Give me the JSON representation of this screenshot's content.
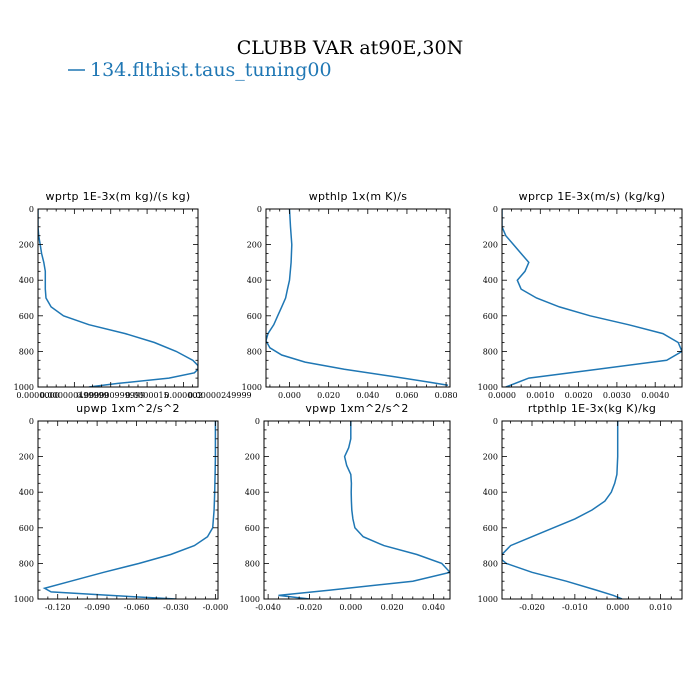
{
  "figure": {
    "title": "CLUBB VAR at90E,30N",
    "legend": "134.flthist.taus_tuning00",
    "line_color": "#1f77b4"
  },
  "chart_data": [
    {
      "type": "line",
      "title": "wprtp  1E-3x(m kg)/(s kg)",
      "series": [
        {
          "name": "134.flthist.taus_tuning00"
        }
      ],
      "xlim": [
        0.0,
        2.2e-06
      ],
      "x_tick_labels": [
        "0.0000000",
        "0.000000499999",
        "0.000000999999",
        "0.0000015",
        "0.000002",
        "0.00000249999"
      ],
      "x_tick_values": [
        0.0,
        5e-07,
        1e-06,
        1.5e-06,
        2e-06,
        2.5e-06
      ],
      "ylim": [
        0,
        1000
      ],
      "y_tick_labels": [
        "0",
        "200",
        "400",
        "600",
        "800",
        "1000"
      ],
      "y": [
        0,
        100,
        150,
        200,
        250,
        300,
        350,
        400,
        450,
        500,
        550,
        600,
        650,
        700,
        750,
        800,
        850,
        880,
        900,
        920,
        950,
        980,
        1000
      ],
      "x": [
        0.0,
        0.0,
        1e-08,
        3e-08,
        5e-08,
        8e-08,
        1e-07,
        1e-07,
        1e-07,
        1.1e-07,
        1.8e-07,
        3.5e-07,
        7e-07,
        1.2e-06,
        1.6e-06,
        1.9e-06,
        2.13e-06,
        2.2e-06,
        2.2e-06,
        2.15e-06,
        1.8e-06,
        1.1e-06,
        7e-07
      ]
    },
    {
      "type": "line",
      "title": "wpthlp  1x(m K)/s",
      "series": [
        {
          "name": "134.flthist.taus_tuning00"
        }
      ],
      "xlim": [
        -0.012,
        0.082
      ],
      "x_tick_labels": [
        "0.000",
        "0.020",
        "0.040",
        "0.060",
        "0.080"
      ],
      "x_tick_values": [
        0.0,
        0.02,
        0.04,
        0.06,
        0.08
      ],
      "ylim": [
        0,
        1000
      ],
      "y_tick_labels": [
        "0",
        "200",
        "400",
        "600",
        "800",
        "1000"
      ],
      "y": [
        0,
        100,
        200,
        300,
        400,
        450,
        500,
        550,
        600,
        650,
        700,
        740,
        780,
        820,
        860,
        900,
        940,
        970,
        990
      ],
      "x": [
        0.0,
        0.0005,
        0.0012,
        0.0008,
        0.0,
        -0.001,
        -0.002,
        -0.004,
        -0.006,
        -0.008,
        -0.011,
        -0.012,
        -0.01,
        -0.004,
        0.008,
        0.028,
        0.052,
        0.07,
        0.081
      ]
    },
    {
      "type": "line",
      "title": "wprcp  1E-3x(m/s) (kg/kg)",
      "series": [
        {
          "name": "134.flthist.taus_tuning00"
        }
      ],
      "xlim": [
        0.0,
        0.0047
      ],
      "x_tick_labels": [
        "0.0000",
        "0.0010",
        "0.0020",
        "0.0030",
        "0.0040"
      ],
      "x_tick_values": [
        0.0,
        0.001,
        0.002,
        0.003,
        0.004
      ],
      "ylim": [
        0,
        1000
      ],
      "y_tick_labels": [
        "0",
        "200",
        "400",
        "600",
        "800",
        "1000"
      ],
      "y": [
        0,
        100,
        150,
        200,
        250,
        300,
        350,
        400,
        450,
        500,
        550,
        600,
        650,
        700,
        750,
        800,
        850,
        900,
        950,
        1000
      ],
      "x": [
        0.0,
        0.0,
        0.0001,
        0.0003,
        0.0005,
        0.0007,
        0.0006,
        0.0004,
        0.0005,
        0.0009,
        0.0015,
        0.0023,
        0.0033,
        0.0042,
        0.0046,
        0.0047,
        0.0043,
        0.0025,
        0.0007,
        0.0001
      ]
    },
    {
      "type": "line",
      "title": "upwp  1xm^2/s^2",
      "series": [
        {
          "name": "134.flthist.taus_tuning00"
        }
      ],
      "xlim": [
        -0.135,
        0.002
      ],
      "x_tick_labels": [
        "-0.120",
        "-0.090",
        "-0.060",
        "-0.030",
        "-0.000"
      ],
      "x_tick_values": [
        -0.12,
        -0.09,
        -0.06,
        -0.03,
        0.0
      ],
      "ylim": [
        0,
        1000
      ],
      "y_tick_labels": [
        "0",
        "200",
        "400",
        "600",
        "800",
        "1000"
      ],
      "y": [
        0,
        100,
        200,
        300,
        400,
        500,
        600,
        650,
        700,
        750,
        800,
        850,
        900,
        940,
        960,
        980,
        1000
      ],
      "x": [
        0.0,
        0.0,
        0.0,
        -0.0002,
        -0.0005,
        -0.001,
        -0.002,
        -0.006,
        -0.016,
        -0.034,
        -0.058,
        -0.085,
        -0.11,
        -0.13,
        -0.125,
        -0.08,
        -0.03
      ]
    },
    {
      "type": "line",
      "title": "vpwp  1xm^2/s^2",
      "series": [
        {
          "name": "134.flthist.taus_tuning00"
        }
      ],
      "xlim": [
        -0.042,
        0.048
      ],
      "x_tick_labels": [
        "-0.040",
        "-0.020",
        "0.000",
        "0.020",
        "0.040"
      ],
      "x_tick_values": [
        -0.04,
        -0.02,
        0.0,
        0.02,
        0.04
      ],
      "ylim": [
        0,
        1000
      ],
      "y_tick_labels": [
        "0",
        "200",
        "400",
        "600",
        "800",
        "1000"
      ],
      "y": [
        0,
        100,
        150,
        200,
        250,
        300,
        350,
        400,
        450,
        500,
        550,
        600,
        650,
        700,
        750,
        800,
        850,
        900,
        950,
        980,
        1000
      ],
      "x": [
        0.0,
        0.0,
        -0.001,
        -0.003,
        -0.002,
        0.0,
        0.0003,
        0.0002,
        0.0003,
        0.0005,
        0.001,
        0.002,
        0.006,
        0.016,
        0.032,
        0.044,
        0.048,
        0.03,
        -0.01,
        -0.035,
        -0.02
      ]
    },
    {
      "type": "line",
      "title": "rtpthlp  1E-3x(kg K)/kg",
      "series": [
        {
          "name": "134.flthist.taus_tuning00"
        }
      ],
      "xlim": [
        -0.027,
        0.015
      ],
      "x_tick_labels": [
        "-0.020",
        "-0.010",
        "0.000",
        "0.010"
      ],
      "x_tick_values": [
        -0.02,
        -0.01,
        0.0,
        0.01
      ],
      "ylim": [
        0,
        1000
      ],
      "y_tick_labels": [
        "0",
        "200",
        "400",
        "600",
        "800",
        "1000"
      ],
      "y": [
        0,
        100,
        200,
        300,
        350,
        400,
        450,
        500,
        550,
        600,
        650,
        700,
        750,
        780,
        800,
        850,
        900,
        950,
        980,
        1000
      ],
      "x": [
        0.0,
        0.0,
        0.0,
        -0.0002,
        -0.0007,
        -0.0015,
        -0.003,
        -0.006,
        -0.01,
        -0.015,
        -0.02,
        -0.025,
        -0.027,
        -0.027,
        -0.026,
        -0.02,
        -0.012,
        -0.005,
        -0.001,
        0.001
      ]
    }
  ]
}
